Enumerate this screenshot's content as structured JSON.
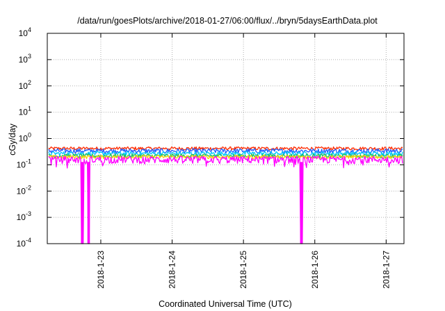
{
  "chart_data": {
    "type": "line",
    "title": "/data/run/goesPlots/archive/2018-01-27/06:00/flux/../bryn/5daysEarthData.plot",
    "xlabel": "Coordinated Universal Time (UTC)",
    "ylabel": "cGy/day",
    "y_scale": "log",
    "ylim": [
      0.0001,
      10000
    ],
    "y_ticks": [
      {
        "value": 0.0001,
        "base": "10",
        "exp": "-4"
      },
      {
        "value": 0.001,
        "base": "10",
        "exp": "-3"
      },
      {
        "value": 0.01,
        "base": "10",
        "exp": "-2"
      },
      {
        "value": 0.1,
        "base": "10",
        "exp": "-1"
      },
      {
        "value": 1,
        "base": "10",
        "exp": "0"
      },
      {
        "value": 10,
        "base": "10",
        "exp": "1"
      },
      {
        "value": 100,
        "base": "10",
        "exp": "2"
      },
      {
        "value": 1000,
        "base": "10",
        "exp": "3"
      },
      {
        "value": 10000,
        "base": "10",
        "exp": "4"
      }
    ],
    "xlim": [
      "2018-01-22T06:00",
      "2018-01-27T06:00"
    ],
    "x_ticks": [
      "2018-1-23",
      "2018-1-24",
      "2018-1-25",
      "2018-1-26",
      "2018-1-27"
    ],
    "grid": true,
    "series": [
      {
        "color": "#ff2a00",
        "level": 0.42,
        "noise": 0.06
      },
      {
        "color": "#1f5bff",
        "level": 0.34,
        "noise": 0.07
      },
      {
        "color": "#00c8ff",
        "level": 0.27,
        "noise": 0.05
      },
      {
        "color": "#20c060",
        "level": 0.22,
        "noise": 0.04
      },
      {
        "color": "#ffd000",
        "level": 0.2,
        "noise": 0.03
      },
      {
        "color": "#ff00ff",
        "level": 0.16,
        "noise": 0.05,
        "dropouts": [
          "2018-01-22T17:45",
          "2018-01-22T19:55",
          "2018-01-25T19:30"
        ]
      }
    ]
  }
}
